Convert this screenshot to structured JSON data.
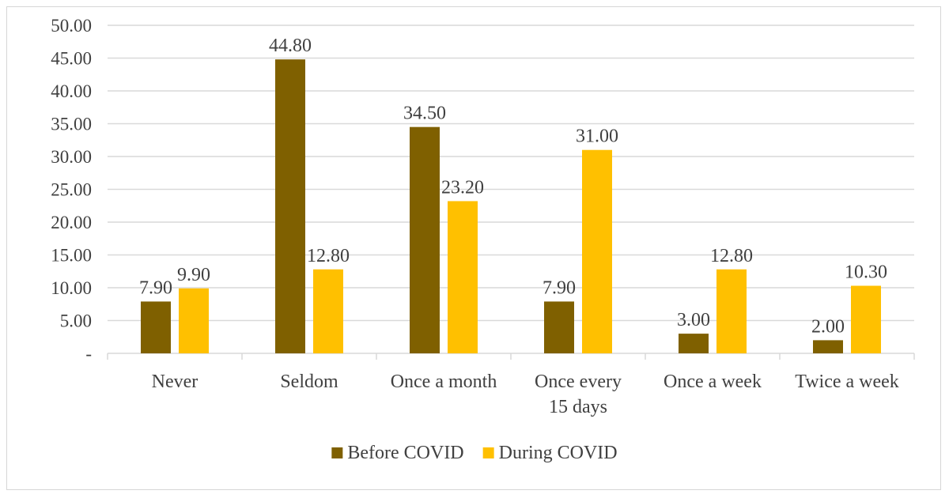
{
  "chart_data": {
    "type": "bar",
    "title": "",
    "xlabel": "",
    "ylabel": "",
    "categories": [
      [
        "Never"
      ],
      [
        "Seldom"
      ],
      [
        "Once a month"
      ],
      [
        "Once every",
        "15 days"
      ],
      [
        "Once a week"
      ],
      [
        "Twice a week"
      ]
    ],
    "series": [
      {
        "name": "Before COVID",
        "color": "#7f6000",
        "values": [
          7.9,
          44.8,
          34.5,
          7.9,
          3.0,
          2.0
        ],
        "labels": [
          "7.90",
          "44.80",
          "34.50",
          "7.90",
          "3.00",
          "2.00"
        ]
      },
      {
        "name": "During  COVID",
        "color": "#ffc000",
        "values": [
          9.9,
          12.8,
          23.2,
          31.0,
          12.8,
          10.3
        ],
        "labels": [
          "9.90",
          "12.80",
          "23.20",
          "31.00",
          "12.80",
          "10.30"
        ]
      }
    ],
    "ylim": [
      0,
      50
    ],
    "yticks": [
      {
        "value": 0,
        "label": "-"
      },
      {
        "value": 5,
        "label": "5.00"
      },
      {
        "value": 10,
        "label": "10.00"
      },
      {
        "value": 15,
        "label": "15.00"
      },
      {
        "value": 20,
        "label": "20.00"
      },
      {
        "value": 25,
        "label": "25.00"
      },
      {
        "value": 30,
        "label": "30.00"
      },
      {
        "value": 35,
        "label": "35.00"
      },
      {
        "value": 40,
        "label": "40.00"
      },
      {
        "value": 45,
        "label": "45.00"
      },
      {
        "value": 50,
        "label": "50.00"
      }
    ],
    "grid": true,
    "gridColor": "#d9d9d9",
    "legend_position": "bottom"
  }
}
